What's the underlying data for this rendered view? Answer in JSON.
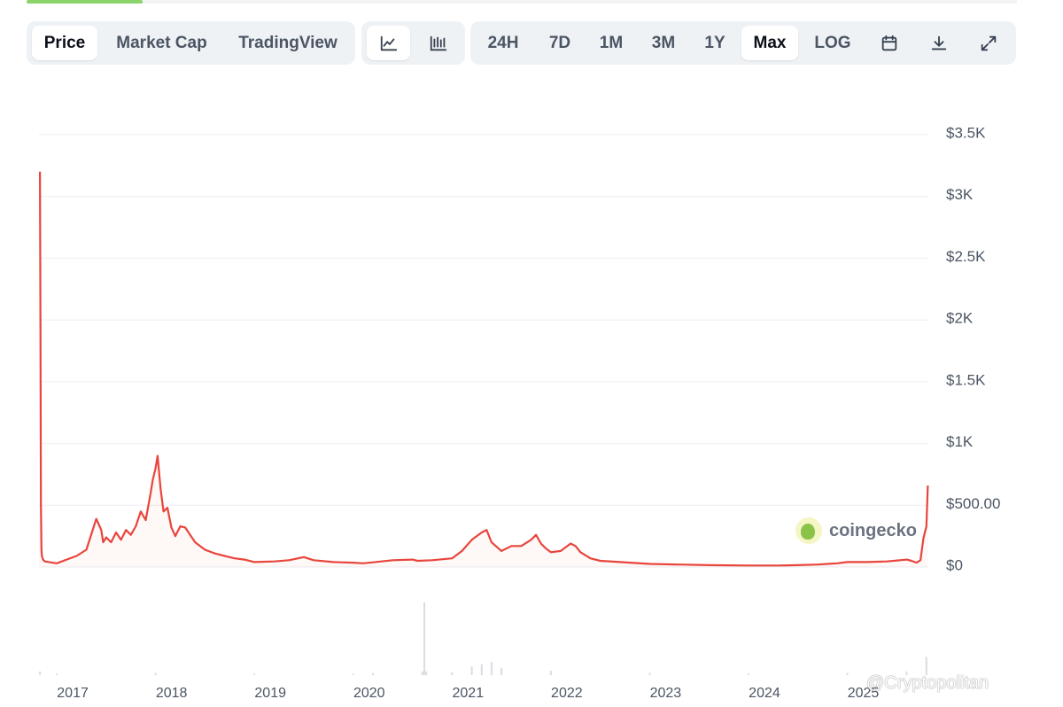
{
  "tabs": {
    "price": "Price",
    "market_cap": "Market Cap",
    "tradingview": "TradingView"
  },
  "chart_style": {
    "line_icon": "line-chart-icon",
    "candle_icon": "candlestick-chart-icon"
  },
  "ranges": {
    "r24h": "24H",
    "r7d": "7D",
    "r1m": "1M",
    "r3m": "3M",
    "r1y": "1Y",
    "max": "Max",
    "log": "LOG",
    "calendar_icon": "calendar-icon",
    "download_icon": "download-icon",
    "fullscreen_icon": "fullscreen-icon"
  },
  "active_range": "Max",
  "brand": {
    "name": "coingecko"
  },
  "watermark": "@Cryptopolitan",
  "colors": {
    "line": "#e8453c",
    "volume": "#d9dce1",
    "active_tab_bg": "#ffffff",
    "toolbar_bg": "#eff2f5"
  },
  "chart_data": {
    "type": "line",
    "title": "",
    "xlabel": "",
    "ylabel": "",
    "y_tick_labels": [
      "$0",
      "$500.00",
      "$1K",
      "$1.5K",
      "$2K",
      "$2.5K",
      "$3K",
      "$3.5K"
    ],
    "y_tick_values": [
      0,
      500,
      1000,
      1500,
      2000,
      2500,
      3000,
      3500
    ],
    "ylim": [
      0,
      3500
    ],
    "x_tick_labels": [
      "2017",
      "2018",
      "2019",
      "2020",
      "2021",
      "2022",
      "2023",
      "2024",
      "2025"
    ],
    "x_tick_values": [
      2017.0,
      2018.0,
      2019.0,
      2020.0,
      2021.0,
      2022.0,
      2023.0,
      2024.0,
      2025.0
    ],
    "xlim": [
      2016.82,
      2025.82
    ],
    "grid": true,
    "series": [
      {
        "x": [
          2016.83,
          2016.835,
          2016.84,
          2016.845,
          2016.85,
          2016.86,
          2016.88,
          2016.92,
          2017.0,
          2017.1,
          2017.2,
          2017.3,
          2017.4,
          2017.45,
          2017.47,
          2017.5,
          2017.55,
          2017.6,
          2017.65,
          2017.7,
          2017.75,
          2017.8,
          2017.85,
          2017.9,
          2017.95,
          2017.97,
          2018.0,
          2018.02,
          2018.05,
          2018.08,
          2018.12,
          2018.16,
          2018.2,
          2018.25,
          2018.3,
          2018.35,
          2018.4,
          2018.5,
          2018.6,
          2018.7,
          2018.8,
          2018.9,
          2019.0,
          2019.2,
          2019.35,
          2019.5,
          2019.6,
          2019.8,
          2020.0,
          2020.1,
          2020.2,
          2020.4,
          2020.6,
          2020.65,
          2020.8,
          2021.0,
          2021.1,
          2021.2,
          2021.3,
          2021.35,
          2021.4,
          2021.5,
          2021.6,
          2021.7,
          2021.8,
          2021.85,
          2021.9,
          2021.95,
          2022.0,
          2022.1,
          2022.2,
          2022.25,
          2022.3,
          2022.4,
          2022.5,
          2022.7,
          2023.0,
          2023.3,
          2023.6,
          2024.0,
          2024.3,
          2024.5,
          2024.7,
          2024.8,
          2024.9,
          2025.0,
          2025.2,
          2025.4,
          2025.6,
          2025.65,
          2025.7,
          2025.74,
          2025.77,
          2025.8,
          2025.815
        ],
        "y": [
          3200,
          1900,
          500,
          140,
          90,
          60,
          45,
          40,
          30,
          60,
          90,
          140,
          390,
          300,
          200,
          240,
          200,
          280,
          220,
          300,
          260,
          330,
          450,
          380,
          600,
          700,
          800,
          900,
          640,
          450,
          480,
          320,
          250,
          330,
          320,
          260,
          200,
          140,
          110,
          90,
          70,
          60,
          40,
          45,
          55,
          80,
          55,
          40,
          35,
          30,
          38,
          55,
          60,
          50,
          55,
          70,
          130,
          220,
          280,
          300,
          200,
          130,
          170,
          170,
          220,
          260,
          190,
          150,
          120,
          130,
          190,
          170,
          120,
          70,
          50,
          40,
          25,
          20,
          15,
          12,
          12,
          15,
          20,
          25,
          30,
          40,
          40,
          45,
          60,
          50,
          35,
          55,
          230,
          330,
          660
        ]
      }
    ],
    "volume": {
      "x": [
        2016.83,
        2017.0,
        2018.0,
        2019.0,
        2020.0,
        2020.2,
        2020.7,
        2020.72,
        2020.74,
        2021.0,
        2021.2,
        2021.3,
        2021.4,
        2021.5,
        2022.0,
        2023.0,
        2024.0,
        2025.0,
        2025.6,
        2025.8
      ],
      "y": [
        0.05,
        0.02,
        0.03,
        0.02,
        0.02,
        0.03,
        0.05,
        1.0,
        0.05,
        0.04,
        0.12,
        0.15,
        0.18,
        0.1,
        0.06,
        0.03,
        0.02,
        0.03,
        0.05,
        0.25
      ]
    }
  }
}
